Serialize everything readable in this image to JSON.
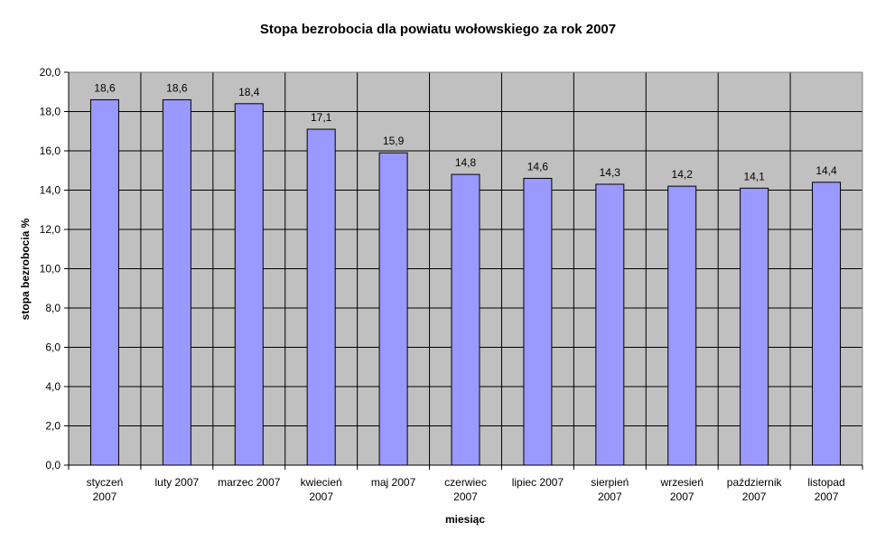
{
  "chart_data": {
    "type": "bar",
    "title": "Stopa bezrobocia dla powiatu wołowskiego za rok 2007",
    "xlabel": "miesiąc",
    "ylabel": "stopa bezrobocia %",
    "categories": [
      [
        "styczeń",
        "2007"
      ],
      [
        "luty 2007"
      ],
      [
        "marzec 2007"
      ],
      [
        "kwiecień",
        "2007"
      ],
      [
        "maj 2007"
      ],
      [
        "czerwiec",
        "2007"
      ],
      [
        "lipiec 2007"
      ],
      [
        "sierpień",
        "2007"
      ],
      [
        "wrzesień",
        "2007"
      ],
      [
        "październik",
        "2007"
      ],
      [
        "listopad",
        "2007"
      ]
    ],
    "values": [
      18.6,
      18.6,
      18.4,
      17.1,
      15.9,
      14.8,
      14.6,
      14.3,
      14.2,
      14.1,
      14.4
    ],
    "data_labels": [
      "18,6",
      "18,6",
      "18,4",
      "17,1",
      "15,9",
      "14,8",
      "14,6",
      "14,3",
      "14,2",
      "14,1",
      "14,4"
    ],
    "y_ticks": [
      "0,0",
      "2,0",
      "4,0",
      "6,0",
      "8,0",
      "10,0",
      "12,0",
      "14,0",
      "16,0",
      "18,0",
      "20,0"
    ],
    "ylim": [
      0,
      20
    ],
    "grid": true,
    "legend": "none",
    "colors": {
      "bar_fill": "#9999ff",
      "bar_stroke": "#000000",
      "plot_background": "#c0c0c0",
      "gridline": "#000000"
    }
  }
}
